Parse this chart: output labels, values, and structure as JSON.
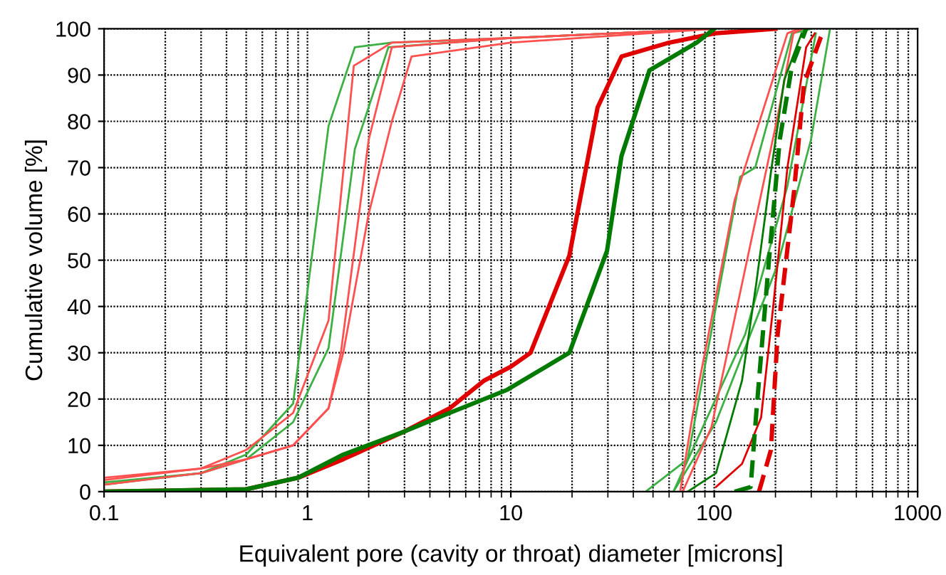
{
  "chart_data": {
    "type": "line",
    "xlabel": "Equivalent pore (cavity or throat) diameter [microns]",
    "ylabel": "Cumulative volume [%]",
    "log": "x",
    "grid": true,
    "xlim": [
      0.1,
      1000
    ],
    "xticks": [
      0.1,
      1,
      10,
      100,
      1000
    ],
    "ylim": [
      0,
      100
    ],
    "yticks": [
      0,
      10,
      20,
      30,
      40,
      50,
      60,
      70,
      80,
      90,
      100
    ],
    "series": [
      {
        "color": "#3cb043",
        "x": [
          0.1,
          0.3,
          0.5,
          0.85,
          1.27,
          1.71,
          2.6,
          10,
          100
        ],
        "values": [
          2,
          4,
          8,
          19,
          79,
          96,
          97,
          98,
          100
        ]
      },
      {
        "color": "#3cb043",
        "x": [
          0.1,
          0.3,
          0.5,
          0.85,
          1.27,
          1.71,
          2.5,
          10,
          100
        ],
        "values": [
          1.5,
          4,
          7,
          15,
          31,
          74,
          96,
          98,
          100
        ]
      },
      {
        "color": "#ff5050",
        "x": [
          0.1,
          0.3,
          0.5,
          0.85,
          1.27,
          1.69,
          2.6,
          10,
          100
        ],
        "values": [
          2.5,
          5,
          9,
          17,
          37,
          92,
          97,
          98,
          100
        ]
      },
      {
        "color": "#ff5050",
        "x": [
          0.1,
          0.3,
          0.5,
          0.85,
          1.27,
          1.46,
          2.0,
          2.6,
          10,
          100
        ],
        "values": [
          3,
          5,
          7,
          10,
          18,
          30,
          76,
          96,
          98,
          100
        ]
      },
      {
        "color": "#ff5050",
        "x": [
          0.1,
          0.3,
          0.5,
          0.85,
          1.27,
          1.5,
          2.0,
          2.6,
          3.25,
          10,
          100
        ],
        "values": [
          1.5,
          4,
          7,
          10,
          18,
          30,
          60,
          80,
          94,
          97,
          100
        ]
      },
      {
        "color": "#e00000",
        "line_style": "solid",
        "x": [
          0.1,
          0.5,
          0.9,
          1.5,
          3,
          5,
          7.4,
          10,
          12.5,
          19.4,
          26.7,
          35,
          60,
          100,
          200
        ],
        "values": [
          0,
          0.5,
          3,
          7,
          13,
          18,
          24,
          27,
          30,
          51,
          83,
          94,
          97,
          99,
          100
        ]
      },
      {
        "color": "#007a00",
        "line_style": "solid",
        "x": [
          0.1,
          0.5,
          0.9,
          1.5,
          3,
          5,
          9.6,
          19.4,
          29.7,
          35,
          48,
          82,
          100
        ],
        "values": [
          0,
          0.5,
          3,
          8,
          13,
          17,
          22,
          30,
          52,
          72.5,
          91,
          97,
          100
        ]
      },
      {
        "color": "#3cb043",
        "x": [
          46,
          74,
          134,
          159,
          241,
          300
        ],
        "values": [
          0,
          7,
          68,
          70,
          99,
          100
        ]
      },
      {
        "color": "#3cb043",
        "x": [
          63,
          102,
          205,
          299,
          371
        ],
        "values": [
          0,
          15,
          49,
          76,
          100
        ]
      },
      {
        "color": "#3cb043",
        "x": [
          63,
          142,
          229,
          316
        ],
        "values": [
          0,
          34,
          66,
          99
        ]
      },
      {
        "color": "#ff5050",
        "x": [
          68,
          78,
          126,
          229,
          260
        ],
        "values": [
          0,
          16,
          63,
          99,
          100
        ]
      },
      {
        "color": "#ff5050",
        "x": [
          70,
          97,
          205,
          245,
          270
        ],
        "values": [
          0,
          14,
          81,
          99,
          100
        ]
      },
      {
        "color": "#007a00",
        "x": [
          74,
          102,
          137,
          161,
          190,
          221,
          269
        ],
        "values": [
          0,
          4,
          24,
          45,
          69,
          89,
          99
        ]
      },
      {
        "color": "#e00000",
        "x": [
          102,
          137,
          170,
          195,
          229,
          283,
          312
        ],
        "values": [
          1,
          6,
          16,
          40,
          70,
          96,
          99
        ]
      },
      {
        "color": "#007a00",
        "line_style": "dashed",
        "x": [
          126,
          151,
          161,
          185,
          210,
          241,
          283
        ],
        "values": [
          0,
          1,
          17,
          49,
          76,
          92,
          100
        ]
      },
      {
        "color": "#e00000",
        "line_style": "dashed",
        "x": [
          166,
          190,
          205,
          247,
          276,
          333,
          350
        ],
        "values": [
          0,
          9,
          34,
          65,
          88,
          98,
          100
        ]
      }
    ]
  }
}
